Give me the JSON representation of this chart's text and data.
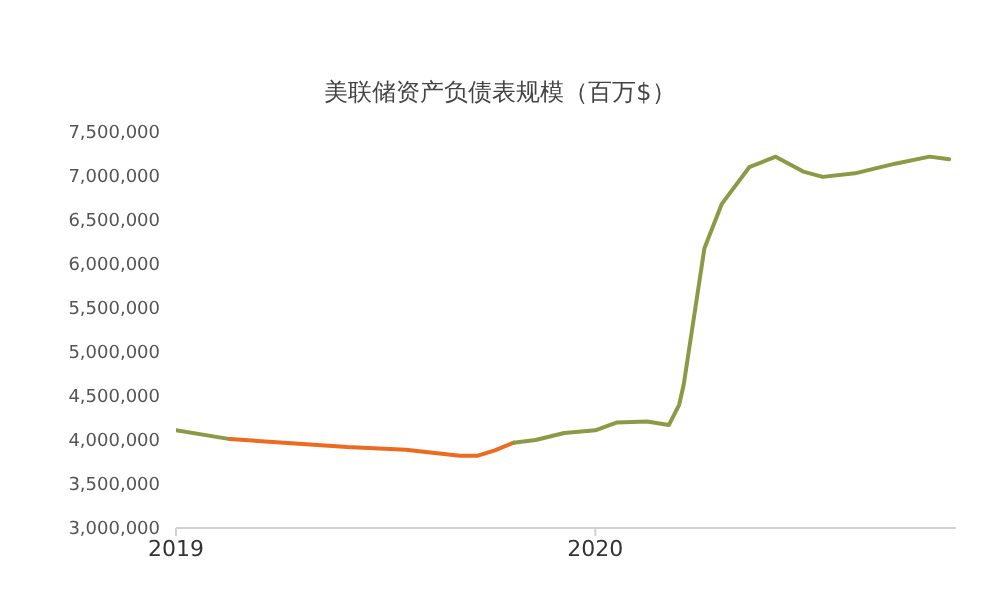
{
  "chart_data": {
    "type": "line",
    "title": "美联储资产负债表规模（百万$）",
    "series": [
      {
        "color": "#8c9a45",
        "x": [
          "2019-01-01",
          "2019-02-17"
        ],
        "values": [
          4110000,
          4010000
        ]
      },
      {
        "color": "#ee6a1e",
        "x": [
          "2019-02-17",
          "2019-04-05",
          "2019-05-30",
          "2019-07-20",
          "2019-09-05",
          "2019-09-20",
          "2019-10-05",
          "2019-10-22"
        ],
        "values": [
          4010000,
          3970000,
          3920000,
          3890000,
          3820000,
          3820000,
          3880000,
          3970000
        ]
      },
      {
        "color": "#8c9a45",
        "x": [
          "2019-10-22",
          "2019-11-10",
          "2019-12-05",
          "2020-01-01",
          "2020-01-20",
          "2020-02-15",
          "2020-03-05",
          "2020-03-14",
          "2020-03-18",
          "2020-04-05",
          "2020-04-20",
          "2020-05-14",
          "2020-06-06",
          "2020-06-30",
          "2020-07-17",
          "2020-08-14",
          "2020-09-18",
          "2020-10-18",
          "2020-11-04"
        ],
        "values": [
          3970000,
          4000000,
          4080000,
          4110000,
          4200000,
          4210000,
          4170000,
          4400000,
          4630000,
          6180000,
          6680000,
          7100000,
          7220000,
          7050000,
          6990000,
          7030000,
          7140000,
          7220000,
          7190000
        ]
      }
    ],
    "xlim": [
      "2019-01-01",
      "2020-11-10"
    ],
    "xticks": [
      "2019",
      "2020"
    ],
    "ylim": [
      3000000,
      7500000
    ],
    "yticks": [
      {
        "value": 3000000,
        "label": "3,000,000"
      },
      {
        "value": 3500000,
        "label": "3,500,000"
      },
      {
        "value": 4000000,
        "label": "4,000,000"
      },
      {
        "value": 4500000,
        "label": "4,500,000"
      },
      {
        "value": 5000000,
        "label": "5,000,000"
      },
      {
        "value": 5500000,
        "label": "5,500,000"
      },
      {
        "value": 6000000,
        "label": "6,000,000"
      },
      {
        "value": 6500000,
        "label": "6,500,000"
      },
      {
        "value": 7000000,
        "label": "7,000,000"
      },
      {
        "value": 7500000,
        "label": "7,500,000"
      }
    ],
    "grid": false,
    "marker": "none",
    "line_style": "solid"
  }
}
